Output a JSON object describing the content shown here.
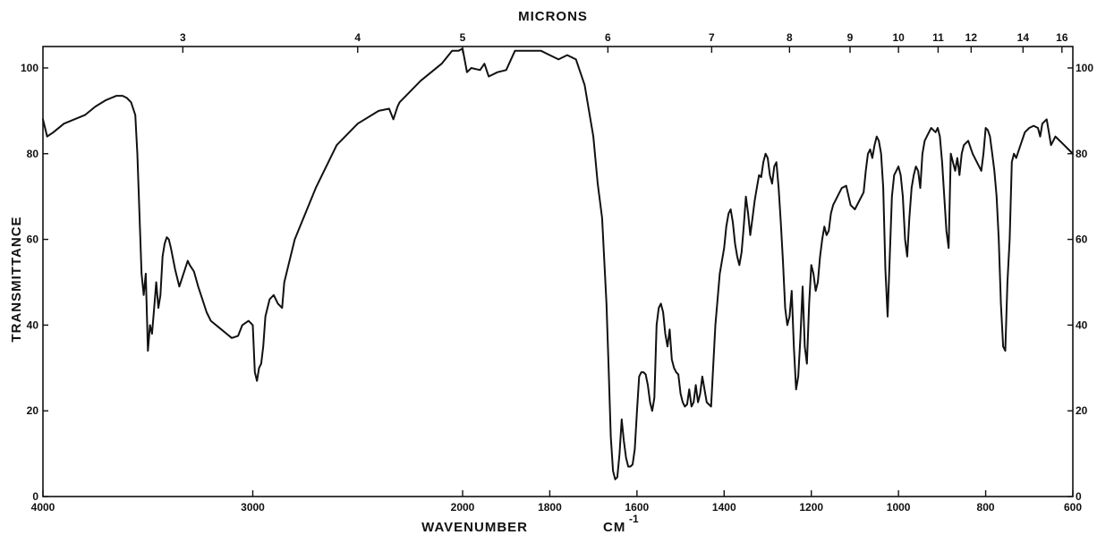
{
  "chart_data": {
    "type": "line",
    "title": "MICRONS",
    "xlabel": "WAVENUMBER",
    "xlabel_unit": "CM",
    "xlabel_unit_exponent": "-1",
    "ylabel": "TRANSMITTANCE",
    "x_ticks": [
      "4000",
      "3000",
      "2000",
      "1800",
      "1600",
      "1400",
      "1200",
      "1000",
      "800",
      "600"
    ],
    "x_tick_values": [
      4000,
      3000,
      2000,
      1800,
      1600,
      1400,
      1200,
      1000,
      800,
      600
    ],
    "top_ticks": [
      "3",
      "4",
      "5",
      "6",
      "7",
      "8",
      "9",
      "10",
      "11",
      "12",
      "14",
      "16"
    ],
    "top_tick_values": [
      3,
      4,
      5,
      6,
      7,
      8,
      9,
      10,
      11,
      12,
      14,
      16
    ],
    "y_ticks_left": [
      "0",
      "20",
      "40",
      "60",
      "80",
      "100"
    ],
    "y_ticks_right": [
      "0",
      "20",
      "40",
      "60",
      "80",
      "100"
    ],
    "y_tick_values": [
      0,
      20,
      40,
      60,
      80,
      100
    ],
    "ylim": [
      0,
      105
    ],
    "grid": false,
    "series": [
      {
        "x": [
          4000,
          3980,
          3950,
          3900,
          3800,
          3750,
          3700,
          3650,
          3620,
          3600,
          3580,
          3560,
          3550,
          3530,
          3520,
          3510,
          3500,
          3490,
          3480,
          3470,
          3460,
          3450,
          3440,
          3430,
          3420,
          3410,
          3400,
          3390,
          3370,
          3350,
          3330,
          3310,
          3300,
          3280,
          3260,
          3240,
          3220,
          3200,
          3150,
          3100,
          3070,
          3050,
          3020,
          3000,
          2990,
          2980,
          2970,
          2960,
          2950,
          2940,
          2920,
          2900,
          2880,
          2860,
          2850,
          2800,
          2700,
          2600,
          2500,
          2400,
          2350,
          2330,
          2310,
          2300,
          2200,
          2100,
          2050,
          2020,
          2000,
          1990,
          1980,
          1960,
          1950,
          1940,
          1920,
          1900,
          1880,
          1860,
          1840,
          1820,
          1800,
          1780,
          1760,
          1740,
          1720,
          1700,
          1690,
          1680,
          1670,
          1665,
          1660,
          1655,
          1650,
          1645,
          1640,
          1635,
          1630,
          1625,
          1620,
          1615,
          1610,
          1605,
          1600,
          1595,
          1590,
          1585,
          1580,
          1575,
          1570,
          1565,
          1560,
          1555,
          1550,
          1545,
          1540,
          1535,
          1530,
          1525,
          1520,
          1515,
          1510,
          1505,
          1500,
          1495,
          1490,
          1485,
          1480,
          1475,
          1470,
          1465,
          1460,
          1455,
          1450,
          1440,
          1430,
          1420,
          1410,
          1400,
          1395,
          1390,
          1385,
          1380,
          1375,
          1370,
          1365,
          1360,
          1355,
          1350,
          1345,
          1340,
          1335,
          1330,
          1325,
          1320,
          1315,
          1310,
          1305,
          1300,
          1295,
          1290,
          1285,
          1280,
          1275,
          1270,
          1265,
          1260,
          1255,
          1250,
          1245,
          1240,
          1235,
          1230,
          1225,
          1220,
          1215,
          1210,
          1205,
          1200,
          1195,
          1190,
          1185,
          1180,
          1175,
          1170,
          1165,
          1160,
          1155,
          1150,
          1140,
          1130,
          1120,
          1110,
          1100,
          1090,
          1080,
          1075,
          1070,
          1065,
          1060,
          1055,
          1050,
          1045,
          1040,
          1035,
          1030,
          1025,
          1020,
          1015,
          1010,
          1005,
          1000,
          995,
          990,
          985,
          980,
          975,
          970,
          965,
          960,
          955,
          950,
          945,
          940,
          935,
          930,
          925,
          920,
          915,
          910,
          905,
          900,
          895,
          890,
          885,
          880,
          875,
          870,
          865,
          860,
          855,
          850,
          840,
          830,
          820,
          810,
          805,
          800,
          795,
          790,
          785,
          780,
          775,
          770,
          765,
          760,
          755,
          750,
          745,
          740,
          735,
          730,
          720,
          710,
          700,
          690,
          680,
          675,
          670,
          665,
          660,
          655,
          650,
          645,
          640,
          630,
          620,
          610,
          600
        ],
        "y": [
          88,
          84,
          85,
          87,
          89,
          91,
          92.5,
          93.5,
          93.5,
          93,
          92,
          89,
          80,
          52,
          47,
          52,
          34,
          40,
          38,
          44,
          50,
          44,
          47,
          56,
          59,
          60.5,
          60,
          58,
          53,
          49,
          52,
          55,
          54,
          52.5,
          49,
          46,
          43,
          41,
          39,
          37,
          37.5,
          40,
          41,
          40,
          29,
          27,
          30,
          31,
          35,
          42,
          46,
          47,
          45,
          44,
          50,
          60,
          72,
          82,
          87,
          90,
          90.5,
          88,
          91,
          92,
          97,
          101,
          104,
          104,
          104.5,
          99,
          100,
          99.5,
          101,
          98,
          99,
          99.5,
          104,
          104,
          104,
          104,
          103,
          102,
          103,
          102,
          96,
          84,
          73,
          65,
          45,
          30,
          14,
          6,
          4,
          4.5,
          10,
          18,
          13,
          9,
          7,
          7,
          7.5,
          11,
          20,
          28,
          29,
          29,
          28.5,
          26,
          22,
          20,
          23,
          40,
          44,
          45,
          43,
          38,
          35,
          39,
          32,
          30,
          29,
          28.5,
          24,
          22,
          21,
          21.5,
          25,
          21,
          22,
          26,
          22,
          24,
          28,
          22,
          21,
          40,
          52,
          58,
          63,
          66,
          67,
          64,
          59,
          56,
          54,
          57,
          63,
          70,
          66,
          61,
          65,
          69,
          72,
          75,
          74.5,
          78,
          80,
          79,
          75,
          73,
          77,
          78,
          72,
          64,
          55,
          44,
          40,
          42,
          48,
          35,
          25,
          28,
          37,
          49,
          35,
          31,
          45,
          54,
          52,
          48,
          50,
          56,
          60,
          63,
          61,
          62,
          66,
          68,
          70,
          72,
          72.5,
          68,
          67,
          69,
          71,
          76,
          80,
          81,
          79,
          82,
          84,
          83,
          80,
          72,
          53,
          42,
          56,
          70,
          75,
          76,
          77,
          75,
          70,
          60,
          56,
          65,
          72,
          75,
          77,
          76,
          72,
          80,
          83,
          84,
          85,
          86,
          85.5,
          85,
          86,
          84,
          78,
          70,
          62,
          58,
          80,
          78,
          76,
          79,
          75,
          80,
          82,
          83,
          80,
          78,
          76,
          80,
          86,
          85.5,
          84,
          80,
          76,
          70,
          60,
          45,
          35,
          34,
          50,
          60,
          78,
          80,
          79,
          82,
          85,
          86,
          86.5,
          86,
          84,
          87,
          87.5,
          88,
          85,
          82,
          83,
          84,
          83,
          82,
          81,
          80
        ]
      }
    ]
  }
}
